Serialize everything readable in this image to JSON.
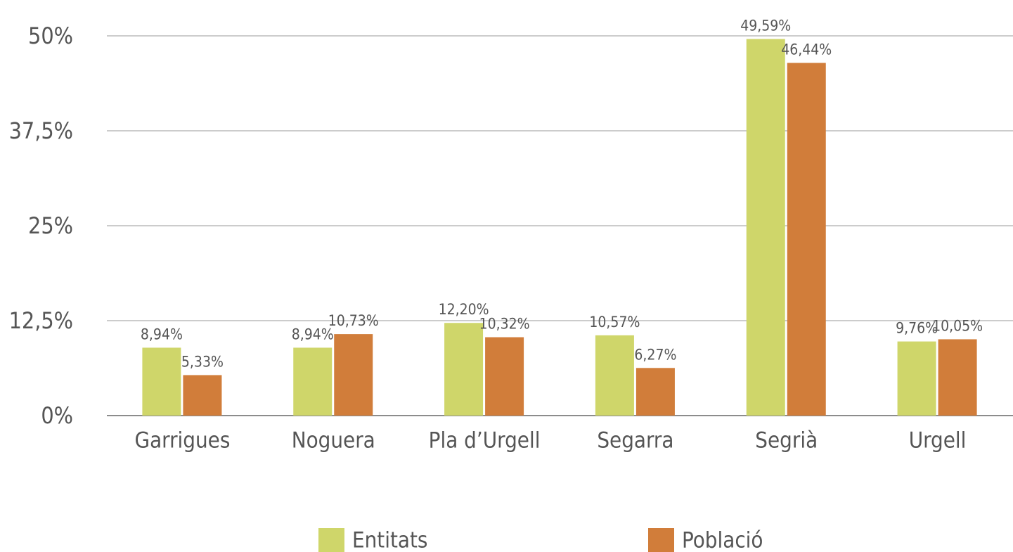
{
  "chart_data": {
    "type": "bar",
    "categories": [
      "Garrigues",
      "Noguera",
      "Pla d’Urgell",
      "Segarra",
      "Segrià",
      "Urgell"
    ],
    "series": [
      {
        "name": "Entitats",
        "color": "#cfd66a",
        "values": [
          8.94,
          8.94,
          12.2,
          10.57,
          49.59,
          9.76
        ],
        "value_labels": [
          "8,94%",
          "8,94%",
          "12,20%",
          "10,57%",
          "49,59%",
          "9,76%"
        ]
      },
      {
        "name": "Població",
        "color": "#d17d3a",
        "values": [
          5.33,
          10.73,
          10.32,
          6.27,
          46.44,
          10.05
        ],
        "value_labels": [
          "5,33%",
          "10,73%",
          "10,32%",
          "6,27%",
          "46,44%",
          "10,05%"
        ]
      }
    ],
    "ylim": [
      0,
      50
    ],
    "yticks": [
      {
        "value": 0,
        "label": "0%"
      },
      {
        "value": 12.5,
        "label": "12,5%"
      },
      {
        "value": 25,
        "label": "25%"
      },
      {
        "value": 37.5,
        "label": "37,5%"
      },
      {
        "value": 50,
        "label": "50%"
      }
    ],
    "grid": true
  }
}
